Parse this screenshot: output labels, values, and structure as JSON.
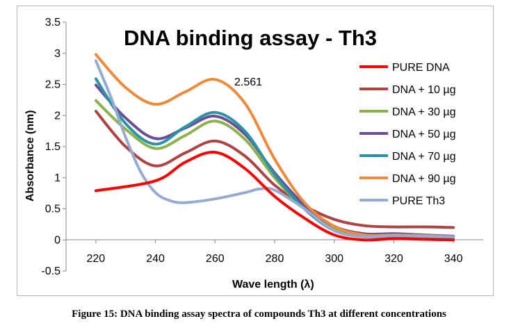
{
  "caption": "Figure 15: DNA binding assay spectra of compounds Th3 at different concentrations",
  "chart_data": {
    "type": "line",
    "title": "DNA binding assay - Th3",
    "xlabel": "Wave length (λ)",
    "ylabel": "Absorbance (nm)",
    "xlim": [
      210,
      350
    ],
    "ylim": [
      -0.5,
      3.5
    ],
    "xticks": [
      "220",
      "240",
      "260",
      "280",
      "300",
      "320",
      "340"
    ],
    "yticks": [
      "-0.5",
      "0",
      "0.5",
      "1",
      "1.5",
      "2",
      "2.5",
      "3",
      "3.5"
    ],
    "grid": false,
    "legend_position": "right",
    "annotation": {
      "text": "2.561",
      "x": 262,
      "y": 2.561
    },
    "series": [
      {
        "name": "PURE DNA",
        "color": "#ff0000",
        "x": [
          220,
          240,
          250,
          260,
          270,
          280,
          290,
          300,
          310,
          320,
          330,
          340
        ],
        "y": [
          0.79,
          0.95,
          1.25,
          1.41,
          1.15,
          0.7,
          0.35,
          0.08,
          0.0,
          0.02,
          0.01,
          0.0
        ]
      },
      {
        "name": "DNA + 10 µg",
        "color": "#b04242",
        "x": [
          220,
          230,
          240,
          250,
          260,
          270,
          280,
          290,
          300,
          310,
          320,
          330,
          340
        ],
        "y": [
          2.07,
          1.5,
          1.19,
          1.4,
          1.59,
          1.35,
          0.88,
          0.55,
          0.33,
          0.23,
          0.21,
          0.21,
          0.2
        ]
      },
      {
        "name": "DNA + 30 µg",
        "color": "#8db24a",
        "x": [
          220,
          230,
          240,
          250,
          260,
          270,
          280,
          290,
          300,
          310,
          320,
          330,
          340
        ],
        "y": [
          2.24,
          1.78,
          1.47,
          1.68,
          1.91,
          1.62,
          1.0,
          0.5,
          0.18,
          0.06,
          0.06,
          0.05,
          0.04
        ]
      },
      {
        "name": "DNA + 50 µg",
        "color": "#6b4e96",
        "x": [
          220,
          230,
          240,
          250,
          260,
          270,
          280,
          290,
          300,
          310,
          320,
          330,
          340
        ],
        "y": [
          2.49,
          1.96,
          1.63,
          1.8,
          1.99,
          1.7,
          1.08,
          0.56,
          0.22,
          0.1,
          0.1,
          0.08,
          0.06
        ]
      },
      {
        "name": "DNA + 70 µg",
        "color": "#2b93a8",
        "x": [
          220,
          230,
          240,
          250,
          260,
          270,
          280,
          290,
          300,
          310,
          320,
          330,
          340
        ],
        "y": [
          2.59,
          1.87,
          1.54,
          1.82,
          2.05,
          1.75,
          1.05,
          0.5,
          0.15,
          0.05,
          0.05,
          0.04,
          0.03
        ]
      },
      {
        "name": "DNA + 90 µg",
        "color": "#f08a38",
        "x": [
          220,
          230,
          240,
          250,
          260,
          270,
          280,
          290,
          300,
          310,
          320,
          330,
          340
        ],
        "y": [
          2.98,
          2.45,
          2.18,
          2.38,
          2.58,
          2.2,
          1.3,
          0.6,
          0.22,
          0.08,
          0.08,
          0.07,
          0.05
        ]
      },
      {
        "name": "PURE Th3",
        "color": "#96abd0",
        "x": [
          220,
          225,
          230,
          235,
          240,
          245,
          250,
          260,
          270,
          275,
          280,
          290,
          300,
          310,
          320,
          330,
          340
        ],
        "y": [
          2.88,
          2.3,
          1.65,
          1.1,
          0.76,
          0.63,
          0.6,
          0.66,
          0.76,
          0.82,
          0.8,
          0.5,
          0.15,
          0.05,
          0.07,
          0.06,
          0.05
        ]
      }
    ]
  }
}
